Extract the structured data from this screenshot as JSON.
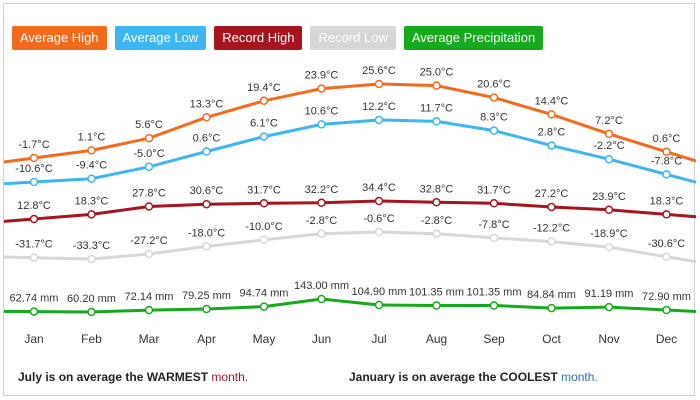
{
  "legend": [
    {
      "label": "Average High",
      "color": "#f26b1d"
    },
    {
      "label": "Average Low",
      "color": "#3db5f1"
    },
    {
      "label": "Record High",
      "color": "#a6141f"
    },
    {
      "label": "Record Low",
      "color": "#d6d6d6"
    },
    {
      "label": "Average Precipitation",
      "color": "#16a81d"
    }
  ],
  "chart_data": {
    "type": "line",
    "categories": [
      "Jan",
      "Feb",
      "Mar",
      "Apr",
      "May",
      "Jun",
      "Jul",
      "Aug",
      "Sep",
      "Oct",
      "Nov",
      "Dec"
    ],
    "series": [
      {
        "name": "Average High",
        "color": "#f26b1d",
        "values": [
          -1.7,
          1.1,
          5.6,
          13.3,
          19.4,
          23.9,
          25.6,
          25.0,
          20.6,
          14.4,
          7.2,
          0.6
        ],
        "labels": [
          "-1.7°C",
          "1.1°C",
          "5.6°C",
          "13.3°C",
          "19.4°C",
          "23.9°C",
          "25.6°C",
          "25.0°C",
          "20.6°C",
          "14.4°C",
          "7.2°C",
          "0.6°C"
        ]
      },
      {
        "name": "Average Low",
        "color": "#3db5f1",
        "values": [
          -10.6,
          -9.4,
          -5.0,
          0.6,
          6.1,
          10.6,
          12.2,
          11.7,
          8.3,
          2.8,
          -2.2,
          -7.8
        ],
        "labels": [
          "-10.6°C",
          "-9.4°C",
          "-5.0°C",
          "0.6°C",
          "6.1°C",
          "10.6°C",
          "12.2°C",
          "11.7°C",
          "8.3°C",
          "2.8°C",
          "-2.2°C",
          "-7.8°C"
        ]
      },
      {
        "name": "Record High",
        "color": "#a6141f",
        "values": [
          12.8,
          18.3,
          27.8,
          30.6,
          31.7,
          32.2,
          34.4,
          32.8,
          31.7,
          27.2,
          23.9,
          18.3
        ],
        "labels": [
          "12.8°C",
          "18.3°C",
          "27.8°C",
          "30.6°C",
          "31.7°C",
          "32.2°C",
          "34.4°C",
          "32.8°C",
          "31.7°C",
          "27.2°C",
          "23.9°C",
          "18.3°C"
        ]
      },
      {
        "name": "Record Low",
        "color": "#d6d6d6",
        "values": [
          -31.7,
          -33.3,
          -27.2,
          -18.0,
          -10.0,
          -2.8,
          -0.6,
          -2.8,
          -7.8,
          -12.2,
          -18.9,
          -30.6
        ],
        "labels": [
          "-31.7°C",
          "-33.3°C",
          "-27.2°C",
          "-18.0°C",
          "-10.0°C",
          "-2.8°C",
          "-0.6°C",
          "-2.8°C",
          "-7.8°C",
          "-12.2°C",
          "-18.9°C",
          "-30.6°C"
        ]
      },
      {
        "name": "Average Precipitation",
        "color": "#16a81d",
        "values": [
          62.74,
          60.2,
          72.14,
          79.25,
          94.74,
          143.0,
          104.9,
          101.35,
          101.35,
          84.84,
          91.19,
          72.9
        ],
        "labels": [
          "62.74 mm",
          "60.20 mm",
          "72.14 mm",
          "79.25 mm",
          "94.74 mm",
          "143.00 mm",
          "104.90 mm",
          "101.35 mm",
          "101.35 mm",
          "84.84 mm",
          "91.19 mm",
          "72.90 mm"
        ]
      }
    ],
    "grid": false
  },
  "footer": {
    "warm_prefix": "July is on average the WARMEST",
    "warm_suffix": "month.",
    "cool_prefix": "January is on average the COOLEST",
    "cool_suffix": "month."
  },
  "colors": {
    "warm_accent": "#a6141f",
    "cool_accent": "#2a6bb5"
  }
}
